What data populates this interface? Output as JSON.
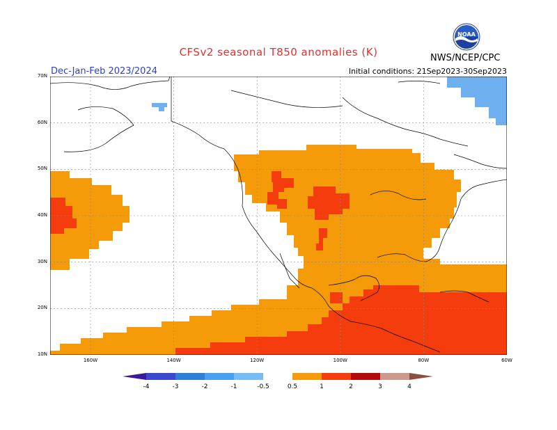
{
  "title": "CFSv2 seasonal T850 anomalies (K)",
  "period": "Dec-Jan-Feb 2023/2024",
  "initial_conditions": "Initial conditions: 21Sep2023-30Sep2023",
  "agency": "NWS/NCEP/CPC",
  "logo_text": "NOAA",
  "map": {
    "lat_labels": [
      "70N",
      "60N",
      "50N",
      "40N",
      "30N",
      "20N",
      "10N"
    ],
    "lon_labels": [
      "160W",
      "140W",
      "120W",
      "100W",
      "80W",
      "60W"
    ],
    "colors": {
      "neg0.5": "#6fb0f0",
      "pos0.5": "#f59b0a",
      "pos1": "#f53c0c",
      "pos2": "#b40a0a",
      "coast": "#000000"
    }
  },
  "colorbar": {
    "labels": [
      "-4",
      "-3",
      "-2",
      "-1",
      "-0.5",
      "0.5",
      "1",
      "2",
      "3",
      "4"
    ],
    "colors": [
      "#3c1aa0",
      "#3a49d0",
      "#2f7fd8",
      "#4aa0f0",
      "#78bcf4",
      "#ffffff",
      "#f59b0a",
      "#f53c0c",
      "#b40a0a",
      "#cc9a8c",
      "#8a5040"
    ]
  }
}
